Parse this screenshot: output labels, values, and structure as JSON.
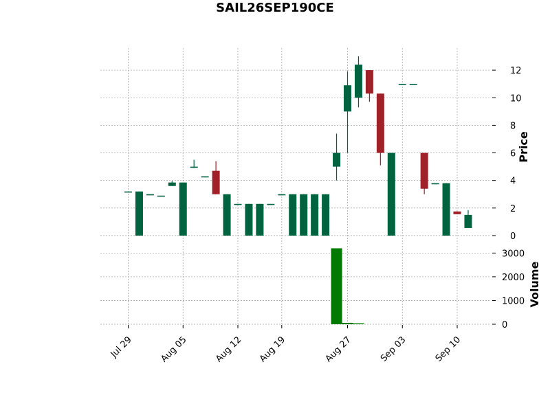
{
  "chart_data": {
    "type": "candlestick",
    "title": "SAIL26SEP190CE",
    "price_axis": {
      "label": "Price",
      "ylim": [
        -0.6,
        13.6
      ],
      "ticks": [
        0,
        2,
        4,
        6,
        8,
        10,
        12
      ]
    },
    "volume_axis": {
      "label": "Volume",
      "ylim": [
        0,
        3300
      ],
      "ticks": [
        0,
        1000,
        2000,
        3000
      ]
    },
    "x_ticks": [
      "Jul 29",
      "Aug 05",
      "Aug 12",
      "Aug 19",
      "Aug 27",
      "Sep 03",
      "Sep 10"
    ],
    "grid": true,
    "colors": {
      "up": "#006340",
      "down": "#a02128",
      "volume": "#007a00",
      "grid": "#a9a9a9"
    },
    "candles": [
      {
        "date": "Jul 29",
        "open": 3.2,
        "high": 3.2,
        "low": 3.2,
        "close": 3.2,
        "volume": 0
      },
      {
        "date": "Jul 30",
        "open": 0,
        "high": 3.2,
        "low": 0,
        "close": 3.2,
        "volume": 0
      },
      {
        "date": "Jul 31",
        "open": 3.0,
        "high": 3.0,
        "low": 3.0,
        "close": 3.0,
        "volume": 0
      },
      {
        "date": "Aug 01",
        "open": 2.9,
        "high": 2.9,
        "low": 2.9,
        "close": 2.9,
        "volume": 0
      },
      {
        "date": "Aug 02",
        "open": 3.6,
        "high": 3.95,
        "low": 3.6,
        "close": 3.85,
        "volume": 0
      },
      {
        "date": "Aug 05",
        "open": 0,
        "high": 3.85,
        "low": 0,
        "close": 3.85,
        "volume": 0
      },
      {
        "date": "Aug 06",
        "open": 4.95,
        "high": 5.5,
        "low": 4.9,
        "close": 5.0,
        "volume": 0
      },
      {
        "date": "Aug 07",
        "open": 4.3,
        "high": 4.3,
        "low": 4.3,
        "close": 4.3,
        "volume": 0
      },
      {
        "date": "Aug 08",
        "open": 4.7,
        "high": 5.4,
        "low": 3.0,
        "close": 3.0,
        "volume": 0
      },
      {
        "date": "Aug 09",
        "open": 0,
        "high": 3.0,
        "low": 0,
        "close": 3.0,
        "volume": 0
      },
      {
        "date": "Aug 12",
        "open": 2.3,
        "high": 2.3,
        "low": 2.3,
        "close": 2.3,
        "volume": 0
      },
      {
        "date": "Aug 13",
        "open": 0,
        "high": 2.3,
        "low": 0,
        "close": 2.3,
        "volume": 0
      },
      {
        "date": "Aug 14",
        "open": 0,
        "high": 2.3,
        "low": 0,
        "close": 2.3,
        "volume": 0
      },
      {
        "date": "Aug 16",
        "open": 2.3,
        "high": 2.3,
        "low": 2.3,
        "close": 2.3,
        "volume": 0
      },
      {
        "date": "Aug 19",
        "open": 3.0,
        "high": 3.0,
        "low": 3.0,
        "close": 3.0,
        "volume": 0
      },
      {
        "date": "Aug 20",
        "open": 0,
        "high": 3.0,
        "low": 0,
        "close": 3.0,
        "volume": 0
      },
      {
        "date": "Aug 21",
        "open": 0,
        "high": 3.0,
        "low": 0,
        "close": 3.0,
        "volume": 0
      },
      {
        "date": "Aug 22",
        "open": 0,
        "high": 3.0,
        "low": 0,
        "close": 3.0,
        "volume": 0
      },
      {
        "date": "Aug 23",
        "open": 0,
        "high": 3.0,
        "low": 0,
        "close": 3.0,
        "volume": 0
      },
      {
        "date": "Aug 26",
        "open": 5.0,
        "high": 7.4,
        "low": 4.0,
        "close": 6.0,
        "volume": 3200
      },
      {
        "date": "Aug 27",
        "open": 9.0,
        "high": 11.9,
        "low": 6.0,
        "close": 10.9,
        "volume": 60
      },
      {
        "date": "Aug 28",
        "open": 10.0,
        "high": 13.0,
        "low": 9.3,
        "close": 12.4,
        "volume": 40
      },
      {
        "date": "Aug 29",
        "open": 12.0,
        "high": 12.0,
        "low": 9.7,
        "close": 10.3,
        "volume": 0
      },
      {
        "date": "Aug 30",
        "open": 10.3,
        "high": 10.3,
        "low": 5.1,
        "close": 6.0,
        "volume": 0
      },
      {
        "date": "Sep 02",
        "open": 0,
        "high": 6.0,
        "low": 0,
        "close": 6.0,
        "volume": 0
      },
      {
        "date": "Sep 03",
        "open": 11.0,
        "high": 11.0,
        "low": 11.0,
        "close": 11.0,
        "volume": 0
      },
      {
        "date": "Sep 04",
        "open": 11.0,
        "high": 11.0,
        "low": 11.0,
        "close": 11.0,
        "volume": 0
      },
      {
        "date": "Sep 05",
        "open": 6.0,
        "high": 6.0,
        "low": 3.0,
        "close": 3.4,
        "volume": 0
      },
      {
        "date": "Sep 06",
        "open": 3.8,
        "high": 3.8,
        "low": 3.8,
        "close": 3.8,
        "volume": 0
      },
      {
        "date": "Sep 09",
        "open": 0,
        "high": 3.8,
        "low": 0,
        "close": 3.8,
        "volume": 0
      },
      {
        "date": "Sep 10",
        "open": 1.75,
        "high": 1.75,
        "low": 1.55,
        "close": 1.55,
        "volume": 0
      },
      {
        "date": "Sep 11",
        "open": 0.55,
        "high": 1.85,
        "low": 0.55,
        "close": 1.5,
        "volume": 0
      }
    ]
  }
}
